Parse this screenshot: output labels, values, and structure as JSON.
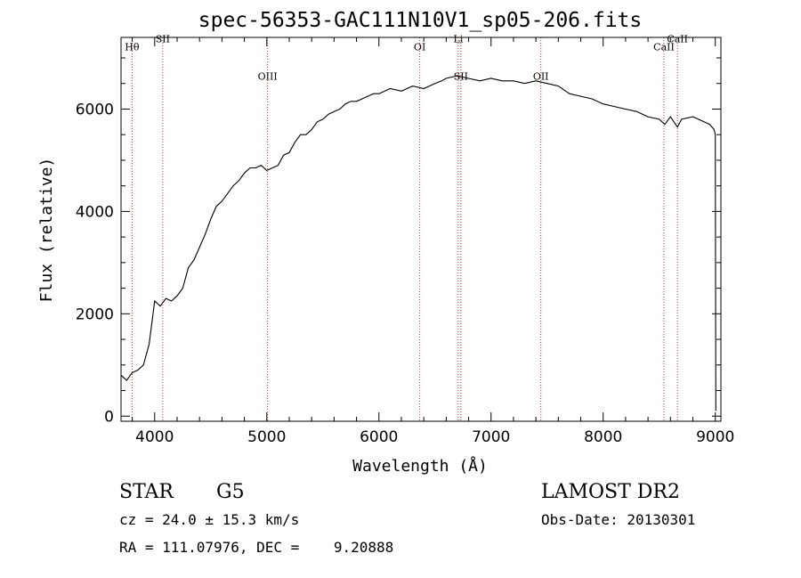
{
  "chart_data": {
    "type": "line",
    "title": "spec-56353-GAC111N10V1_sp05-206.fits",
    "xlabel": "Wavelength (Å)",
    "ylabel": "Flux (relative)",
    "xlim": [
      3700,
      9050
    ],
    "ylim": [
      -100,
      7400
    ],
    "x_ticks": [
      4000,
      5000,
      6000,
      7000,
      8000,
      9000
    ],
    "y_ticks": [
      0,
      2000,
      4000,
      6000
    ],
    "series": [
      {
        "x": [
          3700,
          3750,
          3800,
          3850,
          3900,
          3950,
          4000,
          4050,
          4100,
          4150,
          4200,
          4250,
          4300,
          4350,
          4400,
          4450,
          4500,
          4550,
          4600,
          4650,
          4700,
          4750,
          4800,
          4850,
          4900,
          4950,
          5000,
          5050,
          5100,
          5150,
          5200,
          5250,
          5300,
          5350,
          5400,
          5450,
          5500,
          5550,
          5600,
          5650,
          5700,
          5750,
          5800,
          5850,
          5900,
          5950,
          6000,
          6100,
          6200,
          6300,
          6400,
          6500,
          6560,
          6600,
          6700,
          6800,
          6900,
          7000,
          7100,
          7200,
          7300,
          7400,
          7500,
          7600,
          7700,
          7800,
          7900,
          8000,
          8100,
          8200,
          8300,
          8400,
          8500,
          8550,
          8600,
          8662,
          8700,
          8800,
          8900,
          8950,
          8990,
          9000,
          9005
        ],
        "y": [
          800,
          700,
          850,
          900,
          1000,
          1400,
          2250,
          2150,
          2300,
          2250,
          2350,
          2500,
          2900,
          3050,
          3300,
          3550,
          3850,
          4100,
          4200,
          4350,
          4500,
          4600,
          4750,
          4850,
          4850,
          4900,
          4800,
          4850,
          4900,
          5100,
          5150,
          5350,
          5500,
          5500,
          5600,
          5750,
          5800,
          5900,
          5950,
          6000,
          6100,
          6150,
          6150,
          6200,
          6250,
          6300,
          6300,
          6400,
          6350,
          6450,
          6400,
          6500,
          6550,
          6600,
          6650,
          6600,
          6550,
          6600,
          6550,
          6550,
          6500,
          6550,
          6500,
          6450,
          6300,
          6250,
          6200,
          6100,
          6050,
          6000,
          5950,
          5850,
          5800,
          5700,
          5850,
          5650,
          5800,
          5850,
          5750,
          5700,
          5600,
          5500,
          100
        ]
      }
    ],
    "lines": [
      {
        "label": "Hθ",
        "x": 3798,
        "text_y": 7150
      },
      {
        "label": "SII",
        "x": 4072,
        "text_y": 7300
      },
      {
        "label": "OIII",
        "x": 5007,
        "text_y": 6570
      },
      {
        "label": "OI",
        "x": 6364,
        "text_y": 7150
      },
      {
        "label": "Li",
        "x": 6708,
        "text_y": 7300
      },
      {
        "label": "SII",
        "x": 6731,
        "text_y": 6570
      },
      {
        "label": "OII",
        "x": 7444,
        "text_y": 6570
      },
      {
        "label": "CaII",
        "x": 8542,
        "text_y": 7150
      },
      {
        "label": "CaII",
        "x": 8662,
        "text_y": 7300
      }
    ]
  },
  "info": {
    "object_class": "STAR",
    "subclass": "G5",
    "survey": "LAMOST DR2",
    "redshift": "cz = 24.0 ± 15.3 km/s",
    "obs_date": "Obs-Date: 20130301",
    "coords": "RA = 111.07976, DEC =    9.20888"
  }
}
